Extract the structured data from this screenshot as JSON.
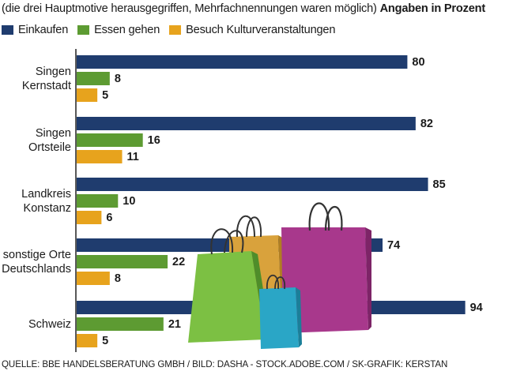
{
  "header": {
    "subtitle": "(die drei Hauptmotive herausgegriffen, Mehrfachnennungen waren möglich)",
    "unit_note": "Angaben in Prozent"
  },
  "colors": {
    "einkaufen": "#1f3c6e",
    "essen": "#5d9b32",
    "kultur": "#e7a31d"
  },
  "chart_data": {
    "type": "bar",
    "orientation": "horizontal",
    "categories": [
      [
        "Singen",
        "Kernstadt"
      ],
      [
        "Singen",
        "Ortsteile"
      ],
      [
        "Landkreis",
        "Konstanz"
      ],
      [
        "sonstige Orte",
        "Deutschlands"
      ],
      [
        "Schweiz"
      ]
    ],
    "series": [
      {
        "name": "Einkaufen",
        "values": [
          80,
          82,
          85,
          74,
          94
        ]
      },
      {
        "name": "Essen gehen",
        "values": [
          8,
          16,
          10,
          22,
          21
        ]
      },
      {
        "name": "Besuch Kulturveranstaltungen",
        "values": [
          5,
          11,
          6,
          8,
          5
        ]
      }
    ],
    "data_labels": true,
    "xlim": [
      0,
      100
    ],
    "legend_position": "top-left",
    "grid": false
  },
  "source": "QUELLE: BBE HANDELSBERATUNG GMBH / BILD: DASHA - STOCK.ADOBE.COM / SK-GRAFIK: KERSTAN",
  "illustration": {
    "name": "shopping-bags-illustration"
  }
}
